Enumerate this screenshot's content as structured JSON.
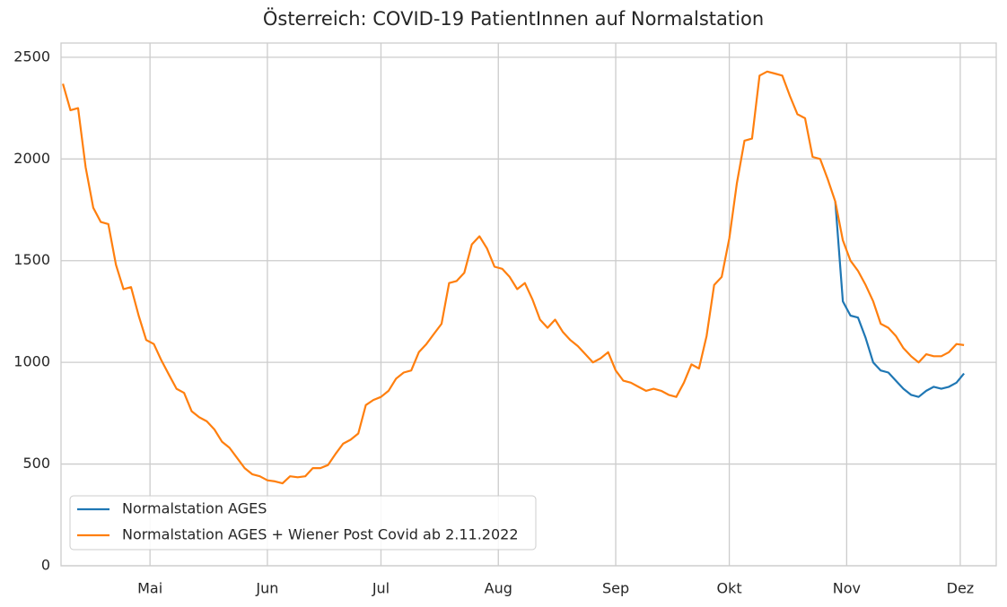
{
  "chart_data": {
    "type": "line",
    "title": "Österreich: COVID-19 PatientInnen auf Normalstation",
    "x": [
      98,
      100,
      102,
      104,
      106,
      108,
      110,
      112,
      114,
      116,
      118,
      120,
      122,
      124,
      126,
      128,
      130,
      132,
      134,
      136,
      138,
      140,
      142,
      144,
      146,
      148,
      150,
      152,
      154,
      156,
      158,
      160,
      162,
      164,
      166,
      168,
      170,
      172,
      174,
      176,
      178,
      180,
      182,
      184,
      186,
      188,
      190,
      192,
      194,
      196,
      198,
      200,
      202,
      204,
      206,
      208,
      210,
      212,
      214,
      216,
      218,
      220,
      222,
      224,
      226,
      228,
      230,
      232,
      234,
      236,
      238,
      240,
      242,
      244,
      246,
      248,
      250,
      252,
      254,
      256,
      258,
      260,
      262,
      264,
      266,
      268,
      270,
      272,
      274,
      276,
      278,
      280,
      282,
      284,
      286,
      288,
      290,
      292,
      294,
      296,
      298,
      300,
      302,
      304,
      306,
      308,
      310,
      312,
      314,
      316,
      318,
      320,
      322,
      324,
      326,
      328,
      330,
      332,
      334,
      336
    ],
    "series": [
      {
        "name": "Normalstation AGES",
        "color": "#1f77b4",
        "values": [
          null,
          null,
          null,
          null,
          null,
          null,
          null,
          null,
          null,
          null,
          null,
          null,
          null,
          null,
          null,
          null,
          null,
          null,
          null,
          null,
          null,
          null,
          null,
          null,
          null,
          null,
          null,
          null,
          null,
          null,
          null,
          null,
          null,
          null,
          null,
          null,
          null,
          null,
          null,
          null,
          null,
          null,
          null,
          null,
          null,
          null,
          null,
          null,
          null,
          null,
          null,
          null,
          null,
          null,
          null,
          null,
          null,
          null,
          null,
          null,
          null,
          null,
          null,
          null,
          null,
          null,
          null,
          null,
          null,
          null,
          null,
          null,
          null,
          null,
          null,
          null,
          null,
          null,
          null,
          null,
          null,
          null,
          null,
          null,
          null,
          null,
          null,
          null,
          null,
          null,
          null,
          null,
          null,
          null,
          null,
          null,
          null,
          null,
          null,
          null,
          null,
          null,
          1790,
          1300,
          1230,
          1220,
          1120,
          1000,
          960,
          950,
          910,
          870,
          840,
          830,
          860,
          880,
          870,
          880,
          900,
          945
        ]
      },
      {
        "name": "Normalstation AGES + Wiener Post Covid ab 2.11.2022",
        "color": "#ff7f0e",
        "values": [
          2370,
          2240,
          2250,
          1960,
          1760,
          1690,
          1680,
          1480,
          1360,
          1370,
          1230,
          1110,
          1090,
          1010,
          940,
          870,
          850,
          760,
          730,
          710,
          670,
          610,
          580,
          530,
          480,
          450,
          440,
          420,
          415,
          405,
          440,
          435,
          440,
          480,
          480,
          495,
          550,
          600,
          620,
          650,
          790,
          815,
          830,
          860,
          920,
          950,
          960,
          1050,
          1090,
          1140,
          1190,
          1390,
          1400,
          1440,
          1580,
          1620,
          1560,
          1470,
          1460,
          1420,
          1360,
          1390,
          1310,
          1210,
          1170,
          1210,
          1150,
          1110,
          1080,
          1040,
          1000,
          1020,
          1050,
          960,
          910,
          900,
          880,
          860,
          870,
          860,
          840,
          830,
          900,
          990,
          970,
          1130,
          1380,
          1420,
          1610,
          1880,
          2090,
          2100,
          2410,
          2430,
          2420,
          2410,
          2310,
          2220,
          2200,
          2010,
          2000,
          1900,
          1790,
          1600,
          1500,
          1450,
          1380,
          1300,
          1190,
          1170,
          1130,
          1070,
          1030,
          1000,
          1040,
          1030,
          1030,
          1050,
          1090,
          1085
        ]
      }
    ],
    "xlim": [
      97.5,
      344.5
    ],
    "xticks": [
      {
        "value": 121,
        "label": "Mai"
      },
      {
        "value": 152,
        "label": "Jun"
      },
      {
        "value": 182,
        "label": "Jul"
      },
      {
        "value": 213,
        "label": "Aug"
      },
      {
        "value": 244,
        "label": "Sep"
      },
      {
        "value": 274,
        "label": "Okt"
      },
      {
        "value": 305,
        "label": "Nov"
      },
      {
        "value": 335,
        "label": "Dez"
      }
    ],
    "ylim": [
      0,
      2570
    ],
    "yticks": [
      0,
      500,
      1000,
      1500,
      2000,
      2500
    ],
    "grid": true,
    "legend": "lower left"
  }
}
